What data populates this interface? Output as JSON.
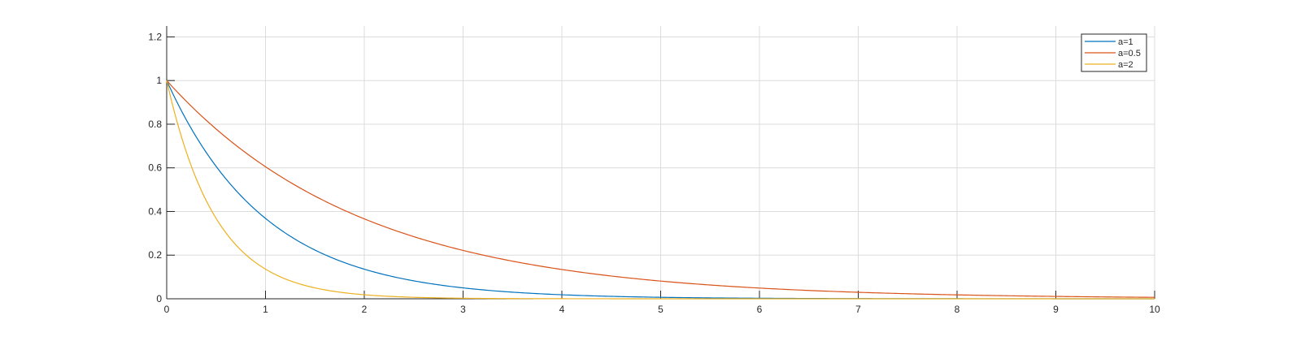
{
  "chart_data": {
    "type": "line",
    "title": "",
    "xlabel": "",
    "ylabel": "",
    "xlim": [
      0,
      10
    ],
    "ylim": [
      0,
      1.25
    ],
    "x_ticks": [
      "0",
      "1",
      "2",
      "3",
      "4",
      "5",
      "6",
      "7",
      "8",
      "9",
      "10"
    ],
    "y_ticks": [
      "0",
      "0.2",
      "0.4",
      "0.6",
      "0.8",
      "1",
      "1.2"
    ],
    "grid": true,
    "legend_position": "top-right",
    "x": [
      0,
      0.25,
      0.5,
      0.75,
      1,
      1.5,
      2,
      2.5,
      3,
      3.5,
      4,
      4.5,
      5,
      5.5,
      6,
      6.5,
      7,
      7.5,
      8,
      8.5,
      9,
      9.5,
      10
    ],
    "series": [
      {
        "name": "a=1",
        "color": "#0072BD",
        "values": [
          1.0,
          0.779,
          0.607,
          0.472,
          0.368,
          0.223,
          0.135,
          0.082,
          0.05,
          0.03,
          0.018,
          0.011,
          0.007,
          0.004,
          0.002,
          0.002,
          0.001,
          0.001,
          0.0,
          0.0,
          0.0,
          0.0,
          0.0
        ]
      },
      {
        "name": "a=0.5",
        "color": "#D95319",
        "values": [
          1.0,
          0.882,
          0.779,
          0.687,
          0.607,
          0.472,
          0.368,
          0.287,
          0.223,
          0.174,
          0.135,
          0.105,
          0.082,
          0.064,
          0.05,
          0.039,
          0.03,
          0.024,
          0.018,
          0.014,
          0.011,
          0.009,
          0.007
        ]
      },
      {
        "name": "a=2",
        "color": "#EDB120",
        "values": [
          1.0,
          0.607,
          0.368,
          0.223,
          0.135,
          0.05,
          0.018,
          0.007,
          0.002,
          0.001,
          0.0,
          0.0,
          0.0,
          0.0,
          0.0,
          0.0,
          0.0,
          0.0,
          0.0,
          0.0,
          0.0,
          0.0,
          0.0
        ]
      }
    ]
  }
}
